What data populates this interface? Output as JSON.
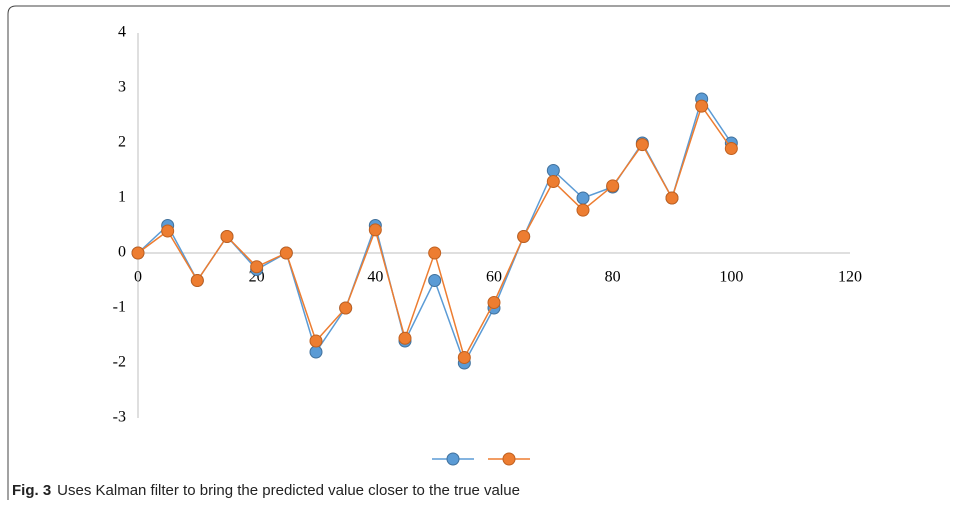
{
  "chart_data": {
    "type": "line",
    "markers": true,
    "grid": false,
    "x": [
      0,
      5,
      10,
      15,
      20,
      25,
      30,
      35,
      40,
      45,
      50,
      55,
      60,
      65,
      70,
      75,
      80,
      85,
      90,
      95,
      100
    ],
    "series": [
      {
        "color": "#5b9bd5",
        "values": [
          0,
          0.5,
          -0.5,
          0.3,
          -0.3,
          0,
          -1.8,
          -1,
          0.5,
          -1.6,
          -0.5,
          -2,
          -1,
          0.3,
          1.5,
          1,
          1.2,
          2,
          1,
          2.8,
          2
        ]
      },
      {
        "color": "#ed7d31",
        "values": [
          0,
          0.4,
          -0.5,
          0.3,
          -0.25,
          0,
          -1.6,
          -1,
          0.42,
          -1.55,
          0,
          -1.9,
          -0.9,
          0.3,
          1.3,
          0.78,
          1.22,
          1.97,
          1,
          2.67,
          1.9
        ]
      }
    ],
    "xlim": [
      0,
      120
    ],
    "xticks": [
      0,
      20,
      40,
      60,
      80,
      100,
      120
    ],
    "ylim": [
      -3,
      4
    ],
    "yticks": [
      -3,
      -2,
      -1,
      0,
      1,
      2,
      3,
      4
    ],
    "legend": "bottom"
  },
  "caption": {
    "label": "Fig. 3",
    "text": "Uses Kalman filter to bring the predicted value closer to the true value"
  }
}
